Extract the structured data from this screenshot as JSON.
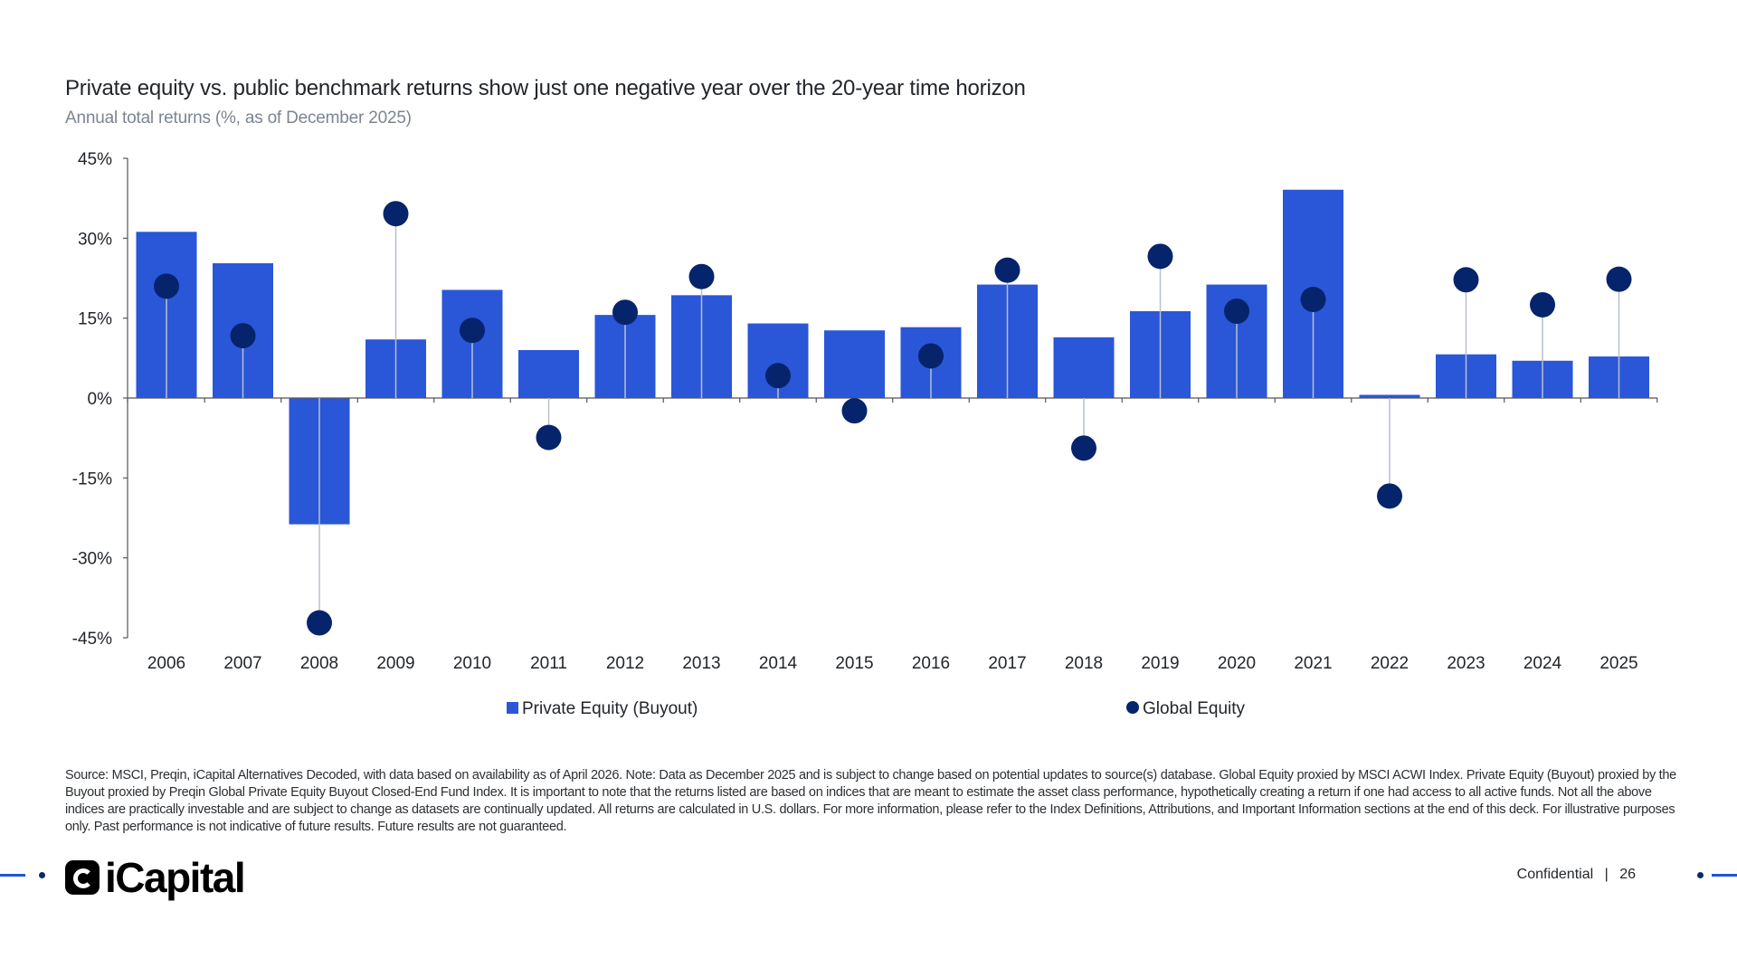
{
  "header": {
    "title": "Private equity vs. public benchmark returns show just one negative year over the 20-year time horizon",
    "subtitle": "Annual total returns (%, as of December 2025)"
  },
  "colors": {
    "bar": "#2a56d8",
    "dot": "#06246b",
    "stem": "#b8c0cc",
    "axis": "#555555"
  },
  "chart_data": {
    "type": "bar",
    "categories": [
      "2006",
      "2007",
      "2008",
      "2009",
      "2010",
      "2011",
      "2012",
      "2013",
      "2014",
      "2015",
      "2016",
      "2017",
      "2018",
      "2019",
      "2020",
      "2021",
      "2022",
      "2023",
      "2024",
      "2025"
    ],
    "ylim": [
      -45,
      45
    ],
    "y_ticks": [
      45,
      30,
      15,
      0,
      -15,
      -30,
      -45
    ],
    "y_tick_labels": [
      "45%",
      "30%",
      "15%",
      "0%",
      "-15%",
      "-30%",
      "-45%"
    ],
    "series": [
      {
        "name": "Private Equity (Buyout)",
        "marker": "bar",
        "values": [
          31.2,
          25.3,
          -23.7,
          11.0,
          20.3,
          9.0,
          15.6,
          19.3,
          14.0,
          12.7,
          13.3,
          21.3,
          11.4,
          16.3,
          21.3,
          39.1,
          0.6,
          8.2,
          7.0,
          7.8
        ]
      },
      {
        "name": "Global Equity",
        "marker": "dot",
        "values": [
          21.0,
          11.7,
          -42.2,
          34.6,
          12.7,
          -7.4,
          16.1,
          22.8,
          4.2,
          -2.4,
          7.9,
          24.0,
          -9.4,
          26.6,
          16.3,
          18.5,
          -18.4,
          22.2,
          17.5,
          22.3
        ]
      }
    ],
    "legend": {
      "position": "bottom"
    },
    "grid": false
  },
  "footer": {
    "source": "Source: MSCI, Preqin, iCapital Alternatives Decoded, with data based on availability as of April 2026. Note: Data as December 2025 and is subject to change based on potential updates to source(s) database. Global Equity proxied by MSCI ACWI Index. Private Equity (Buyout) proxied by the Buyout proxied by Preqin Global Private Equity Buyout Closed-End Fund Index. It is important to note that the returns listed are based on indices that are meant to estimate the asset class performance, hypothetically creating a return if one had access to all active funds. Not all the above indices are practically investable and are subject to change as datasets are continually updated. All returns are calculated in U.S. dollars. For more information, please refer to the Index Definitions, Attributions, and Important Information sections at the end of this deck. For illustrative purposes only. Past performance is not indicative of future results. Future results are not guaranteed.",
    "logo_text": "iCapital",
    "confidential": "Confidential",
    "separator": "|",
    "page_number": "26"
  }
}
